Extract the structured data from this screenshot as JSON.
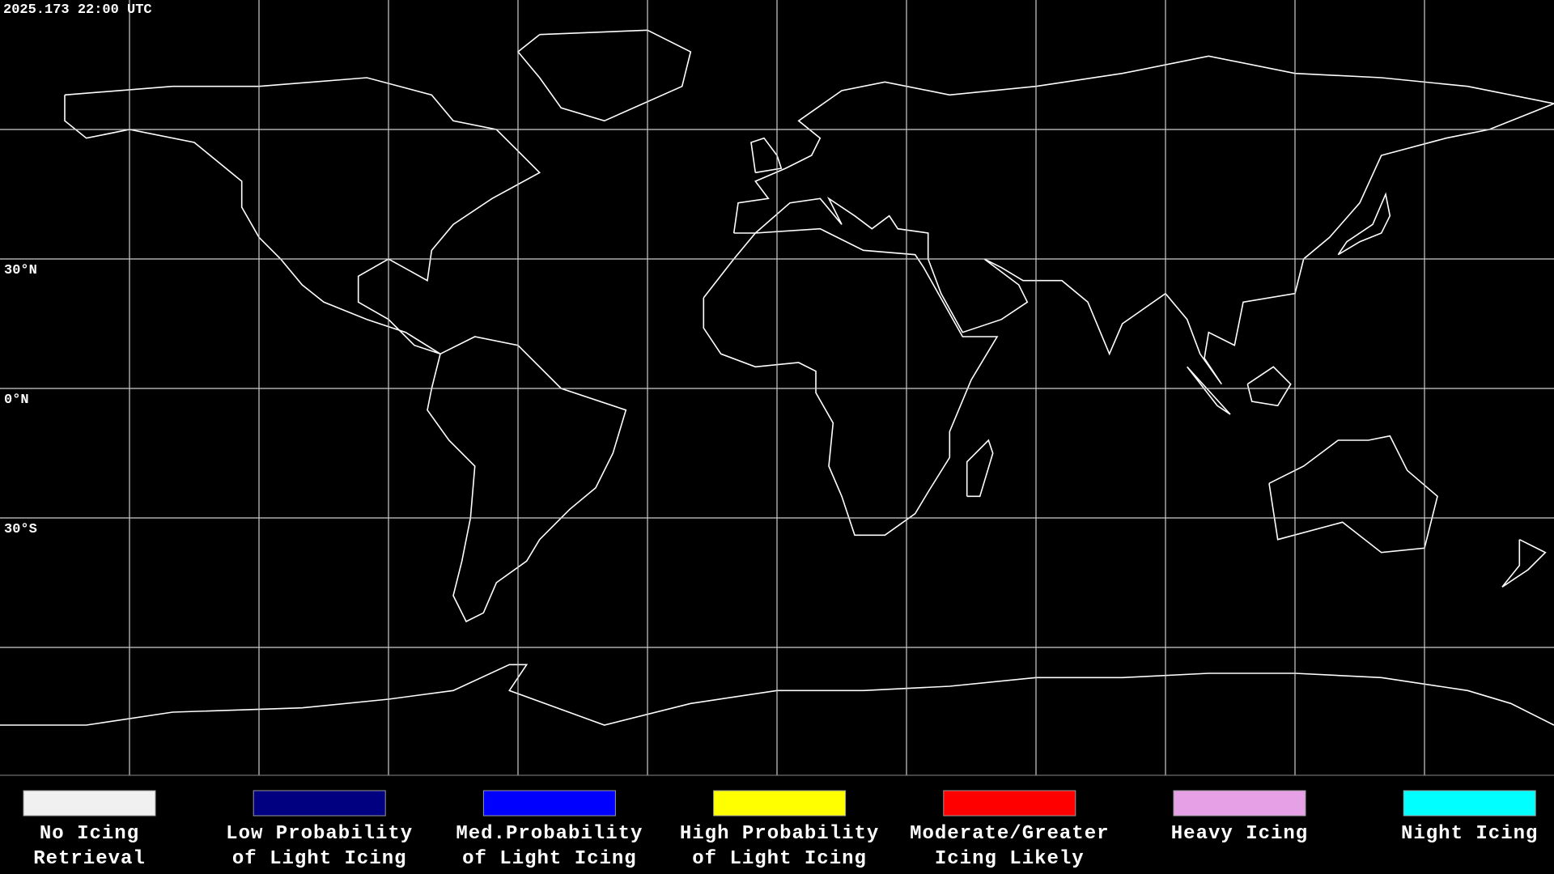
{
  "timestamp": "2025.173 22:00 UTC",
  "latitude_labels": [
    "30°N",
    "0°N",
    "30°S"
  ],
  "legend": [
    {
      "lines": [
        "No Icing",
        "Retrieval"
      ],
      "color": "#f0f0f0"
    },
    {
      "lines": [
        "Low Probability",
        "of Light Icing"
      ],
      "color": "#000080"
    },
    {
      "lines": [
        "Med.Probability",
        "of Light Icing"
      ],
      "color": "#0000ff"
    },
    {
      "lines": [
        "High Probability",
        "of Light Icing"
      ],
      "color": "#ffff00"
    },
    {
      "lines": [
        "Moderate/Greater",
        "Icing Likely"
      ],
      "color": "#ff0000"
    },
    {
      "lines": [
        "Heavy Icing"
      ],
      "color": "#e6a0e6"
    },
    {
      "lines": [
        "Night Icing"
      ],
      "color": "#00ffff"
    }
  ]
}
